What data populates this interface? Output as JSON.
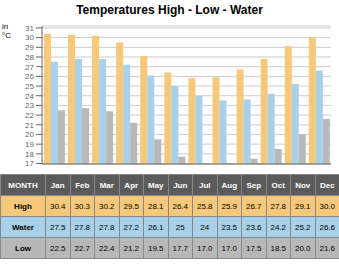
{
  "chart_data": {
    "type": "bar",
    "title": "Temperatures High - Low - Water",
    "categories": [
      "Jan",
      "Feb",
      "Mar",
      "Apr",
      "May",
      "Jun",
      "Jul",
      "Aug",
      "Sep",
      "Oct",
      "Nov",
      "Dec"
    ],
    "x_label": "MONTH",
    "y_label": "in\n°C",
    "series": [
      {
        "name": "High",
        "color": "#f5c87a",
        "values": [
          30.4,
          30.3,
          30.2,
          29.5,
          28.1,
          26.4,
          25.8,
          25.9,
          26.7,
          27.8,
          29.1,
          30.0
        ],
        "value_labels": [
          "30.4",
          "30.3",
          "30.2",
          "29.5",
          "28.1",
          "26.4",
          "25.8",
          "25.9",
          "26.7",
          "27.8",
          "29.1",
          "30.0"
        ]
      },
      {
        "name": "Water",
        "color": "#a8d0e8",
        "values": [
          27.5,
          27.8,
          27.8,
          27.2,
          26.1,
          25.0,
          24.0,
          23.5,
          23.6,
          24.2,
          25.2,
          26.6
        ],
        "value_labels": [
          "27.5",
          "27.8",
          "27.8",
          "27.2",
          "26.1",
          "25",
          "24",
          "23.5",
          "23.6",
          "24.2",
          "25.2",
          "26.6"
        ]
      },
      {
        "name": "Low",
        "color": "#b8b8b8",
        "values": [
          22.5,
          22.7,
          22.4,
          21.2,
          19.5,
          17.7,
          17.0,
          17.0,
          17.5,
          18.5,
          20.0,
          21.6
        ],
        "value_labels": [
          "22.5",
          "22.7",
          "22.4",
          "21.2",
          "19.5",
          "17.7",
          "17.0",
          "17.0",
          "17.5",
          "18.5",
          "20.0",
          "21.6"
        ]
      }
    ],
    "ylim": [
      16.95,
      31.2
    ],
    "yticks": [
      17,
      18,
      19,
      20,
      21,
      22,
      23,
      24,
      25,
      26,
      27,
      28,
      29,
      30,
      31
    ],
    "grid": true,
    "tick_labels": "y",
    "data_labels": true
  }
}
